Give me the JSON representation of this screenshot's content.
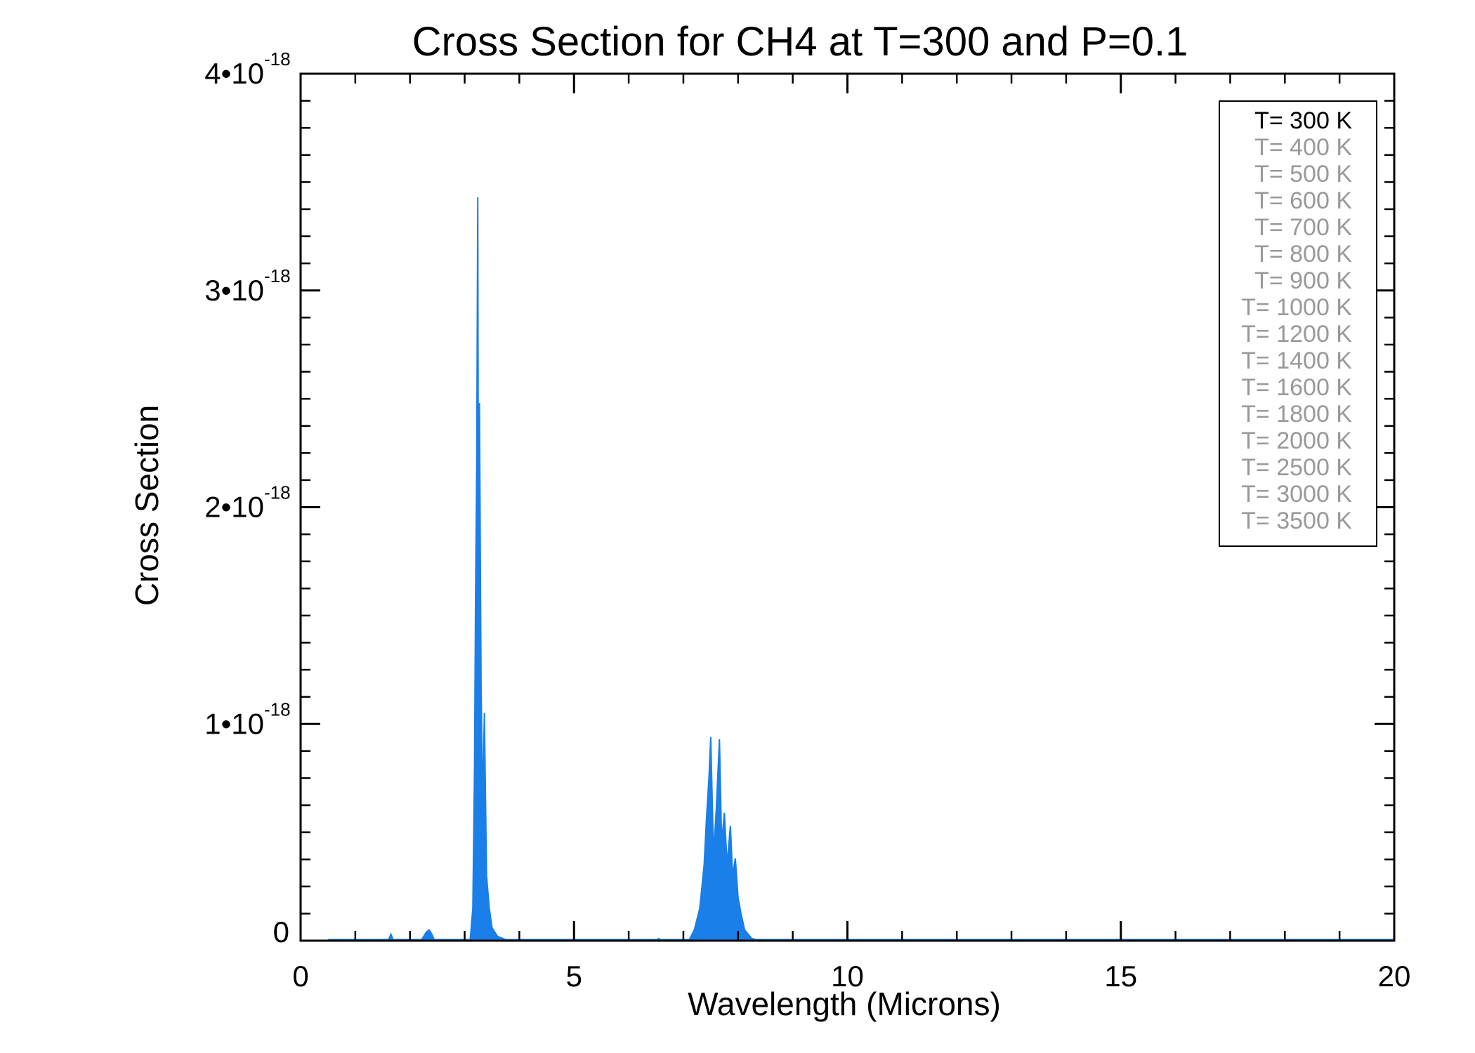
{
  "chart_data": {
    "type": "area",
    "title": "Cross Section for CH4 at T=300 and P=0.1",
    "xlabel": "Wavelength (Microns)",
    "ylabel": "Cross Section",
    "xlim": [
      0,
      20
    ],
    "ylim": [
      0,
      4e-18
    ],
    "xticks": [
      {
        "value": 0,
        "label": "0"
      },
      {
        "value": 5,
        "label": "5"
      },
      {
        "value": 10,
        "label": "10"
      },
      {
        "value": 15,
        "label": "15"
      },
      {
        "value": 20,
        "label": "20"
      }
    ],
    "yticks": [
      {
        "value": 0,
        "mantissa": "0",
        "exponent": ""
      },
      {
        "value": 1e-18,
        "mantissa": "1•10",
        "exponent": "-18"
      },
      {
        "value": 2e-18,
        "mantissa": "2•10",
        "exponent": "-18"
      },
      {
        "value": 3e-18,
        "mantissa": "3•10",
        "exponent": "-18"
      },
      {
        "value": 4e-18,
        "mantissa": "4•10",
        "exponent": "-18"
      }
    ],
    "series": [
      {
        "name": "T= 300 K",
        "color": "#1a7fe8",
        "points": [
          [
            0.5,
            0
          ],
          [
            1.6,
            0
          ],
          [
            1.65,
            3e-20
          ],
          [
            1.7,
            0
          ],
          [
            2.2,
            0
          ],
          [
            2.3,
            4e-20
          ],
          [
            2.35,
            5e-20
          ],
          [
            2.4,
            3e-20
          ],
          [
            2.45,
            0
          ],
          [
            3.1,
            0
          ],
          [
            3.15,
            1.5e-19
          ],
          [
            3.18,
            8e-19
          ],
          [
            3.2,
            1.6e-18
          ],
          [
            3.22,
            2.2e-18
          ],
          [
            3.24,
            3.43e-18
          ],
          [
            3.25,
            2.1e-18
          ],
          [
            3.27,
            2.48e-18
          ],
          [
            3.3,
            1.2e-18
          ],
          [
            3.33,
            6e-19
          ],
          [
            3.36,
            1.05e-18
          ],
          [
            3.4,
            3e-19
          ],
          [
            3.45,
            1.5e-19
          ],
          [
            3.5,
            6e-20
          ],
          [
            3.6,
            2e-20
          ],
          [
            3.8,
            0
          ],
          [
            6.5,
            0
          ],
          [
            6.55,
            1e-20
          ],
          [
            6.6,
            0
          ],
          [
            7.1,
            0
          ],
          [
            7.2,
            5e-20
          ],
          [
            7.3,
            1.5e-19
          ],
          [
            7.38,
            3.5e-19
          ],
          [
            7.42,
            5.5e-19
          ],
          [
            7.47,
            7.6e-19
          ],
          [
            7.5,
            9.4e-19
          ],
          [
            7.55,
            4e-19
          ],
          [
            7.6,
            6e-19
          ],
          [
            7.66,
            9.3e-19
          ],
          [
            7.7,
            4.5e-19
          ],
          [
            7.75,
            5.9e-19
          ],
          [
            7.8,
            3.5e-19
          ],
          [
            7.86,
            5.3e-19
          ],
          [
            7.9,
            3e-19
          ],
          [
            7.95,
            3.8e-19
          ],
          [
            8.0,
            2e-19
          ],
          [
            8.05,
            1.3e-19
          ],
          [
            8.12,
            5e-20
          ],
          [
            8.25,
            1e-20
          ],
          [
            8.4,
            0
          ],
          [
            20,
            0
          ]
        ]
      }
    ],
    "legend": {
      "position": "top-right",
      "entries": [
        {
          "label": "T= 300 K",
          "color": "#000000"
        },
        {
          "label": "T= 400 K",
          "color": "#999999"
        },
        {
          "label": "T= 500 K",
          "color": "#999999"
        },
        {
          "label": "T= 600 K",
          "color": "#999999"
        },
        {
          "label": "T= 700 K",
          "color": "#999999"
        },
        {
          "label": "T= 800 K",
          "color": "#999999"
        },
        {
          "label": "T= 900 K",
          "color": "#999999"
        },
        {
          "label": "T= 1000 K",
          "color": "#999999"
        },
        {
          "label": "T= 1200 K",
          "color": "#999999"
        },
        {
          "label": "T= 1400 K",
          "color": "#999999"
        },
        {
          "label": "T= 1600 K",
          "color": "#999999"
        },
        {
          "label": "T= 1800 K",
          "color": "#999999"
        },
        {
          "label": "T= 2000 K",
          "color": "#999999"
        },
        {
          "label": "T= 2500 K",
          "color": "#999999"
        },
        {
          "label": "T= 3000 K",
          "color": "#999999"
        },
        {
          "label": "T= 3500 K",
          "color": "#999999"
        }
      ]
    }
  }
}
